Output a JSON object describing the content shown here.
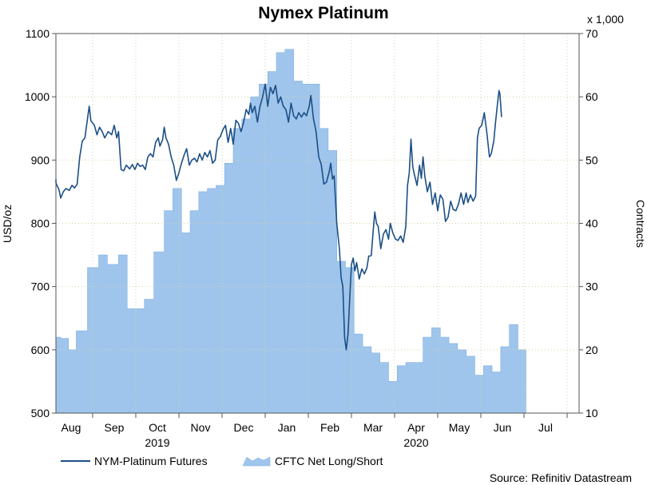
{
  "chart_data": {
    "type": "line+area",
    "title": "Nymex Platinum",
    "ylabel": "USD/oz",
    "y2label": "Contracts",
    "y2multiplier": "x 1,000",
    "source": "Source: Refinitiv Datastream",
    "ylim": [
      500,
      1100
    ],
    "y2lim": [
      10,
      70
    ],
    "yticks": [
      "500",
      "600",
      "700",
      "800",
      "900",
      "1000",
      "1100"
    ],
    "y2ticks": [
      "10",
      "20",
      "30",
      "40",
      "50",
      "60",
      "70"
    ],
    "months": [
      "Aug",
      "Sep",
      "Oct",
      "Nov",
      "Dec",
      "Jan",
      "Feb",
      "Mar",
      "Apr",
      "May",
      "Jun",
      "Jul"
    ],
    "years": [
      {
        "label": "2019",
        "month_index": 2
      },
      {
        "label": "2020",
        "month_index": 8
      }
    ],
    "series": [
      {
        "name": "NYM-Platinum Futures",
        "kind": "line",
        "axis": "left",
        "color": "#1b4f86",
        "points": [
          [
            0.0,
            870
          ],
          [
            0.08,
            865
          ],
          [
            0.16,
            862
          ],
          [
            0.22,
            853
          ],
          [
            0.26,
            840
          ],
          [
            0.32,
            850
          ],
          [
            0.38,
            855
          ],
          [
            0.46,
            852
          ],
          [
            0.52,
            860
          ],
          [
            0.58,
            856
          ],
          [
            0.64,
            862
          ],
          [
            0.7,
            905
          ],
          [
            0.76,
            930
          ],
          [
            0.82,
            935
          ],
          [
            0.88,
            965
          ],
          [
            0.92,
            985
          ],
          [
            0.96,
            962
          ],
          [
            1.04,
            955
          ],
          [
            1.1,
            940
          ],
          [
            1.16,
            952
          ],
          [
            1.22,
            945
          ],
          [
            1.28,
            935
          ],
          [
            1.36,
            945
          ],
          [
            1.44,
            940
          ],
          [
            1.5,
            955
          ],
          [
            1.56,
            935
          ],
          [
            1.6,
            945
          ],
          [
            1.66,
            885
          ],
          [
            1.72,
            883
          ],
          [
            1.78,
            892
          ],
          [
            1.86,
            886
          ],
          [
            1.92,
            893
          ],
          [
            1.98,
            885
          ],
          [
            2.04,
            895
          ],
          [
            2.1,
            890
          ],
          [
            2.16,
            892
          ],
          [
            2.22,
            885
          ],
          [
            2.28,
            905
          ],
          [
            2.34,
            910
          ],
          [
            2.4,
            905
          ],
          [
            2.46,
            928
          ],
          [
            2.52,
            935
          ],
          [
            2.56,
            922
          ],
          [
            2.62,
            932
          ],
          [
            2.66,
            952
          ],
          [
            2.7,
            935
          ],
          [
            2.76,
            925
          ],
          [
            2.82,
            905
          ],
          [
            2.88,
            892
          ],
          [
            2.94,
            868
          ],
          [
            3.0,
            880
          ],
          [
            3.06,
            895
          ],
          [
            3.12,
            908
          ],
          [
            3.18,
            918
          ],
          [
            3.24,
            892
          ],
          [
            3.3,
            900
          ],
          [
            3.36,
            903
          ],
          [
            3.42,
            897
          ],
          [
            3.48,
            910
          ],
          [
            3.54,
            900
          ],
          [
            3.6,
            912
          ],
          [
            3.66,
            905
          ],
          [
            3.72,
            915
          ],
          [
            3.78,
            895
          ],
          [
            3.84,
            900
          ],
          [
            3.9,
            932
          ],
          [
            3.96,
            937
          ],
          [
            4.02,
            948
          ],
          [
            4.08,
            955
          ],
          [
            4.14,
            928
          ],
          [
            4.2,
            950
          ],
          [
            4.26,
            925
          ],
          [
            4.32,
            963
          ],
          [
            4.38,
            958
          ],
          [
            4.44,
            945
          ],
          [
            4.5,
            960
          ],
          [
            4.56,
            980
          ],
          [
            4.62,
            972
          ],
          [
            4.66,
            990
          ],
          [
            4.7,
            975
          ],
          [
            4.76,
            985
          ],
          [
            4.82,
            960
          ],
          [
            4.88,
            985
          ],
          [
            4.94,
            1000
          ],
          [
            5.0,
            1020
          ],
          [
            5.06,
            985
          ],
          [
            5.12,
            1015
          ],
          [
            5.18,
            1005
          ],
          [
            5.24,
            1018
          ],
          [
            5.3,
            990
          ],
          [
            5.36,
            1000
          ],
          [
            5.42,
            985
          ],
          [
            5.48,
            980
          ],
          [
            5.54,
            960
          ],
          [
            5.6,
            990
          ],
          [
            5.66,
            970
          ],
          [
            5.72,
            965
          ],
          [
            5.78,
            975
          ],
          [
            5.84,
            968
          ],
          [
            5.9,
            975
          ],
          [
            5.96,
            970
          ],
          [
            6.02,
            985
          ],
          [
            6.06,
            1002
          ],
          [
            6.12,
            965
          ],
          [
            6.18,
            945
          ],
          [
            6.24,
            905
          ],
          [
            6.3,
            893
          ],
          [
            6.36,
            862
          ],
          [
            6.42,
            865
          ],
          [
            6.48,
            880
          ],
          [
            6.52,
            895
          ],
          [
            6.56,
            870
          ],
          [
            6.6,
            875
          ],
          [
            6.66,
            800
          ],
          [
            6.72,
            760
          ],
          [
            6.76,
            715
          ],
          [
            6.8,
            700
          ],
          [
            6.84,
            620
          ],
          [
            6.88,
            600
          ],
          [
            6.92,
            625
          ],
          [
            6.96,
            680
          ],
          [
            7.0,
            735
          ],
          [
            7.04,
            745
          ],
          [
            7.08,
            725
          ],
          [
            7.12,
            738
          ],
          [
            7.18,
            712
          ],
          [
            7.24,
            728
          ],
          [
            7.3,
            720
          ],
          [
            7.36,
            730
          ],
          [
            7.4,
            748
          ],
          [
            7.46,
            749
          ],
          [
            7.5,
            785
          ],
          [
            7.54,
            818
          ],
          [
            7.58,
            800
          ],
          [
            7.62,
            795
          ],
          [
            7.68,
            760
          ],
          [
            7.74,
            783
          ],
          [
            7.8,
            790
          ],
          [
            7.86,
            775
          ],
          [
            7.9,
            800
          ],
          [
            7.96,
            785
          ],
          [
            8.02,
            775
          ],
          [
            8.08,
            773
          ],
          [
            8.14,
            780
          ],
          [
            8.2,
            770
          ],
          [
            8.26,
            795
          ],
          [
            8.3,
            860
          ],
          [
            8.34,
            880
          ],
          [
            8.38,
            933
          ],
          [
            8.42,
            890
          ],
          [
            8.46,
            877
          ],
          [
            8.52,
            860
          ],
          [
            8.58,
            892
          ],
          [
            8.62,
            871
          ],
          [
            8.66,
            905
          ],
          [
            8.7,
            875
          ],
          [
            8.76,
            850
          ],
          [
            8.82,
            865
          ],
          [
            8.88,
            830
          ],
          [
            8.94,
            848
          ],
          [
            9.0,
            820
          ],
          [
            9.06,
            845
          ],
          [
            9.12,
            838
          ],
          [
            9.18,
            803
          ],
          [
            9.24,
            810
          ],
          [
            9.3,
            835
          ],
          [
            9.36,
            822
          ],
          [
            9.42,
            820
          ],
          [
            9.48,
            830
          ],
          [
            9.54,
            848
          ],
          [
            9.6,
            830
          ],
          [
            9.66,
            848
          ],
          [
            9.7,
            833
          ],
          [
            9.76,
            845
          ],
          [
            9.82,
            835
          ],
          [
            9.88,
            843
          ],
          [
            9.92,
            935
          ],
          [
            9.96,
            950
          ],
          [
            10.02,
            955
          ],
          [
            10.08,
            975
          ],
          [
            10.14,
            942
          ],
          [
            10.2,
            905
          ],
          [
            10.24,
            910
          ],
          [
            10.3,
            930
          ],
          [
            10.34,
            960
          ],
          [
            10.38,
            985
          ],
          [
            10.42,
            1010
          ],
          [
            10.44,
            1005
          ],
          [
            10.48,
            968
          ]
        ]
      },
      {
        "name": "CFTC Net Long/Short",
        "kind": "area",
        "axis": "right",
        "color": "#9fc5ec",
        "edge": "#7aaee2",
        "weeks": [
          [
            0.0,
            22
          ],
          [
            0.26,
            21.8
          ],
          [
            0.44,
            20
          ],
          [
            0.62,
            23
          ],
          [
            0.88,
            33
          ],
          [
            1.14,
            35
          ],
          [
            1.34,
            33.5
          ],
          [
            1.6,
            35
          ],
          [
            1.8,
            26.5
          ],
          [
            2.0,
            26.5
          ],
          [
            2.2,
            28
          ],
          [
            2.42,
            35.5
          ],
          [
            2.66,
            42
          ],
          [
            2.86,
            45.5
          ],
          [
            3.06,
            38.5
          ],
          [
            3.26,
            42
          ],
          [
            3.46,
            45
          ],
          [
            3.66,
            45.5
          ],
          [
            3.86,
            46
          ],
          [
            4.06,
            49.5
          ],
          [
            4.26,
            55
          ],
          [
            4.46,
            56.5
          ],
          [
            4.66,
            60
          ],
          [
            4.86,
            62
          ],
          [
            5.06,
            64
          ],
          [
            5.26,
            67
          ],
          [
            5.46,
            67.5
          ],
          [
            5.66,
            62.5
          ],
          [
            5.86,
            62
          ],
          [
            6.06,
            62
          ],
          [
            6.26,
            55
          ],
          [
            6.46,
            51.5
          ],
          [
            6.66,
            34
          ],
          [
            6.86,
            33
          ],
          [
            7.06,
            22.5
          ],
          [
            7.26,
            20.5
          ],
          [
            7.46,
            19.5
          ],
          [
            7.66,
            18
          ],
          [
            7.86,
            15
          ],
          [
            8.06,
            17.5
          ],
          [
            8.26,
            18
          ],
          [
            8.46,
            18
          ],
          [
            8.66,
            22
          ],
          [
            8.86,
            23.5
          ],
          [
            9.06,
            22
          ],
          [
            9.26,
            21
          ],
          [
            9.46,
            20
          ],
          [
            9.66,
            19
          ],
          [
            9.86,
            16
          ],
          [
            10.06,
            17.5
          ],
          [
            10.26,
            16.5
          ],
          [
            10.46,
            20.5
          ],
          [
            10.66,
            24
          ],
          [
            10.86,
            20
          ]
        ]
      }
    ]
  }
}
